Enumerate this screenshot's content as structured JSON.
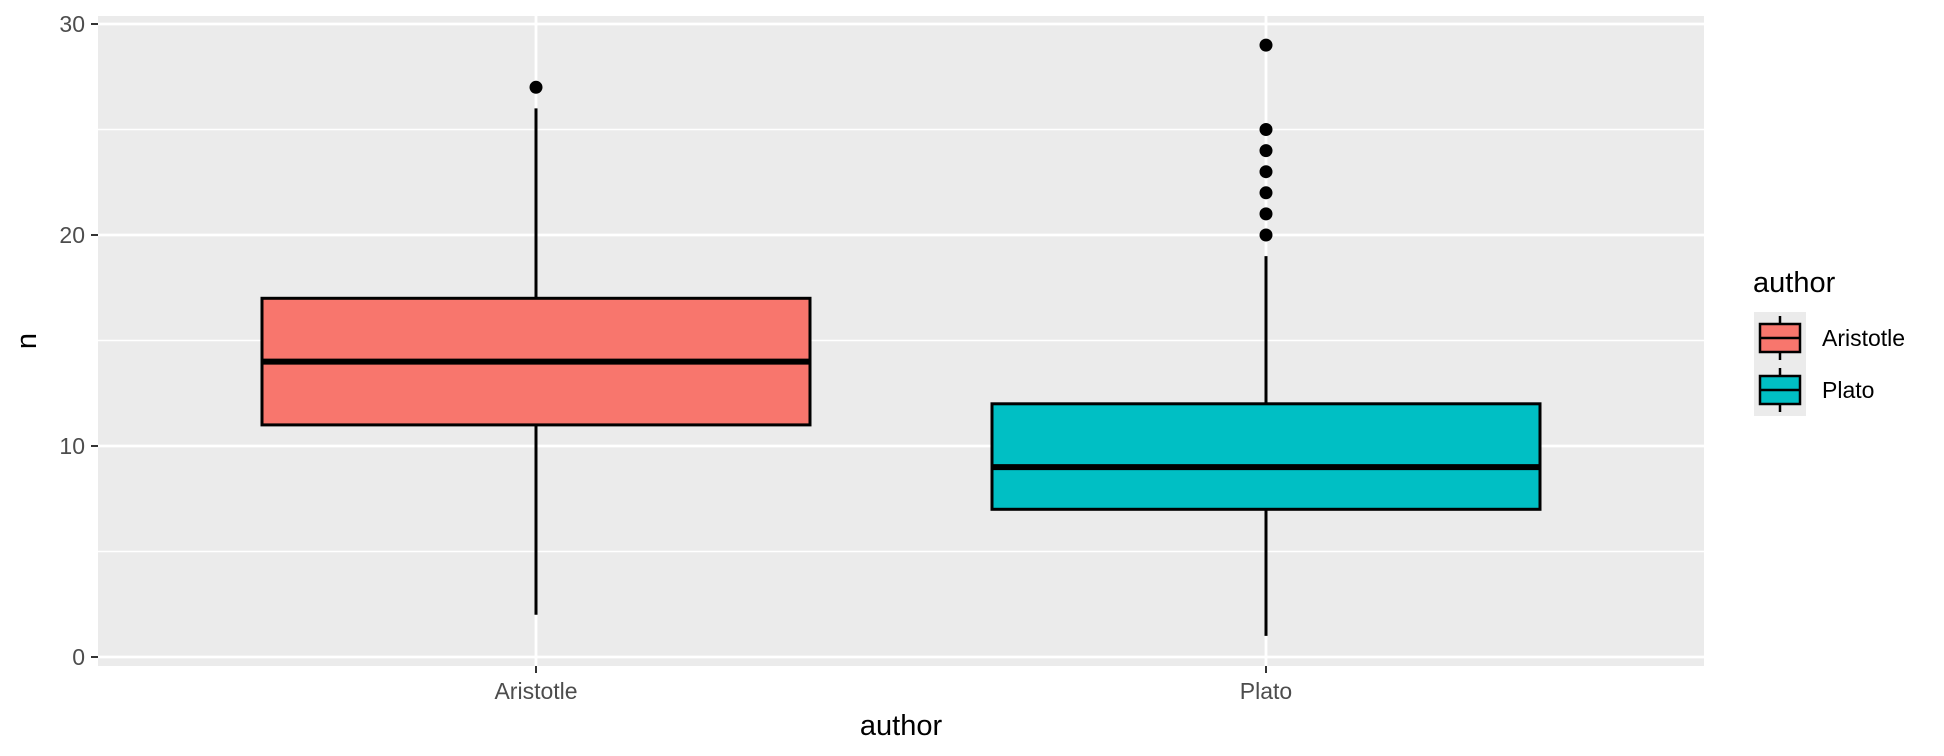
{
  "chart_data": {
    "type": "boxplot",
    "title": "",
    "xlabel": "author",
    "ylabel": "n",
    "ylim": [
      0,
      30
    ],
    "y_ticks": [
      0,
      10,
      20,
      30
    ],
    "y_minor_ticks": [
      5,
      15,
      25
    ],
    "categories": [
      "Aristotle",
      "Plato"
    ],
    "grid": true,
    "legend": {
      "title": "author",
      "position": "right",
      "entries": [
        {
          "label": "Aristotle",
          "color": "#F8766D"
        },
        {
          "label": "Plato",
          "color": "#00BFC4"
        }
      ]
    },
    "series": [
      {
        "name": "Aristotle",
        "color": "#F8766D",
        "whisker_low": 2,
        "q1": 11,
        "median": 14,
        "q3": 17,
        "whisker_high": 26,
        "outliers": [
          27
        ]
      },
      {
        "name": "Plato",
        "color": "#00BFC4",
        "whisker_low": 1,
        "q1": 7,
        "median": 9,
        "q3": 12,
        "whisker_high": 19,
        "outliers": [
          20,
          21,
          22,
          23,
          24,
          25,
          29
        ]
      }
    ]
  },
  "colors": {
    "panel_background": "#EBEBEB",
    "grid_line": "#FFFFFF",
    "box_outline": "#000000"
  }
}
